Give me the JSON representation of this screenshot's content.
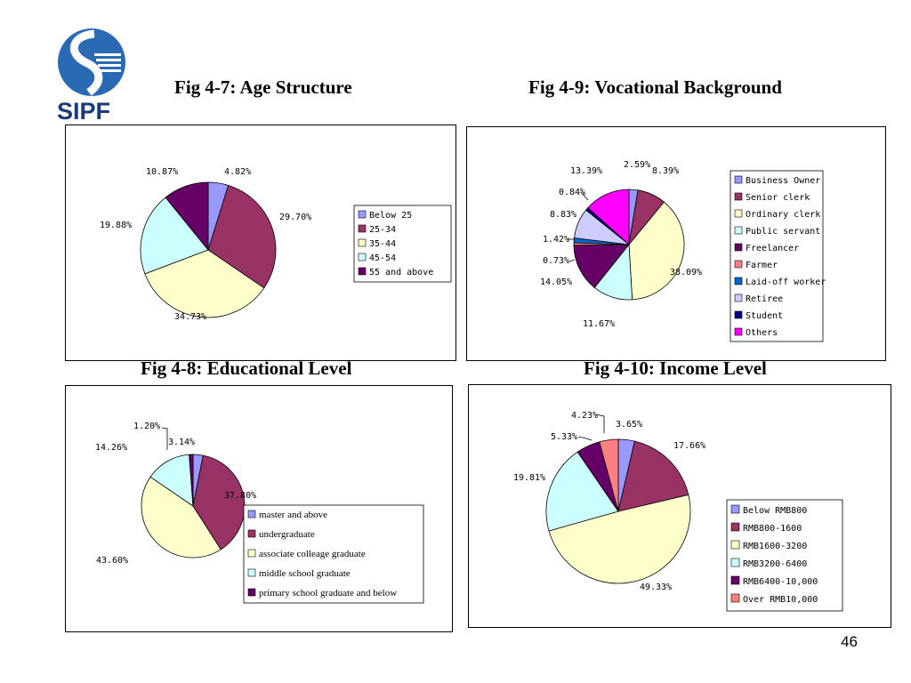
{
  "brand": {
    "logo_text": "SIPF",
    "colors": {
      "blue": "#2a6ab5",
      "navy": "#1a3a7a"
    }
  },
  "page_number": "46",
  "chart_data": [
    {
      "id": "fig47",
      "type": "pie",
      "title": "Fig 4-7: Age Structure",
      "categories": [
        "Below 25",
        "25-34",
        "35-44",
        "45-54",
        "55 and above"
      ],
      "values": [
        4.82,
        29.7,
        34.73,
        19.88,
        10.87
      ],
      "labels": [
        "4.82%",
        "29.70%",
        "34.73%",
        "19.88%",
        "10.87%"
      ],
      "colors": [
        "#9999ff",
        "#993366",
        "#ffffcc",
        "#ccffff",
        "#660066"
      ],
      "legend": "right"
    },
    {
      "id": "fig49",
      "type": "pie",
      "title": "Fig 4-9: Vocational Background",
      "categories": [
        "Business Owner",
        "Senior clerk",
        "Ordinary clerk",
        "Public servant",
        "Freelancer",
        "Farmer",
        "Laid-off worker",
        "Retiree",
        "Student",
        "Others"
      ],
      "values": [
        2.59,
        8.39,
        38.09,
        11.67,
        14.05,
        0.73,
        1.42,
        8.83,
        0.84,
        13.39
      ],
      "labels": [
        "2.59%",
        "8.39%",
        "38.09%",
        "11.67%",
        "14.05%",
        "0.73%",
        "1.42%",
        "8.83%",
        "0.84%",
        "13.39%"
      ],
      "colors": [
        "#9999ff",
        "#993366",
        "#ffffcc",
        "#ccffff",
        "#660066",
        "#ff8080",
        "#0066cc",
        "#ccccff",
        "#000080",
        "#ff00ff"
      ],
      "legend": "right"
    },
    {
      "id": "fig48",
      "type": "pie",
      "title": "Fig 4-8: Educational Level",
      "categories": [
        "master and above",
        "undergraduate",
        "associate colleage graduate",
        "middle school graduate",
        "primary school graduate and below"
      ],
      "values": [
        3.14,
        37.8,
        43.6,
        14.26,
        1.2
      ],
      "labels": [
        "3.14%",
        "37.80%",
        "43.60%",
        "14.26%",
        "1.20%"
      ],
      "colors": [
        "#9999ff",
        "#993366",
        "#ffffcc",
        "#ccffff",
        "#660066"
      ],
      "legend": "bottom-right"
    },
    {
      "id": "fig410",
      "type": "pie",
      "title": "Fig 4-10: Income Level",
      "categories": [
        "Below RMB800",
        "RMB800-1600",
        "RMB1600-3200",
        "RMB3200-6400",
        "RMB6400-10,000",
        "Over RMB10,000"
      ],
      "values": [
        3.65,
        17.66,
        49.33,
        19.81,
        5.33,
        4.23
      ],
      "labels": [
        "3.65%",
        "17.66%",
        "49.33%",
        "19.81%",
        "5.33%",
        "4.23%"
      ],
      "colors": [
        "#9999ff",
        "#993366",
        "#ffffcc",
        "#ccffff",
        "#660066",
        "#ff8080"
      ],
      "legend": "bottom-right"
    }
  ]
}
